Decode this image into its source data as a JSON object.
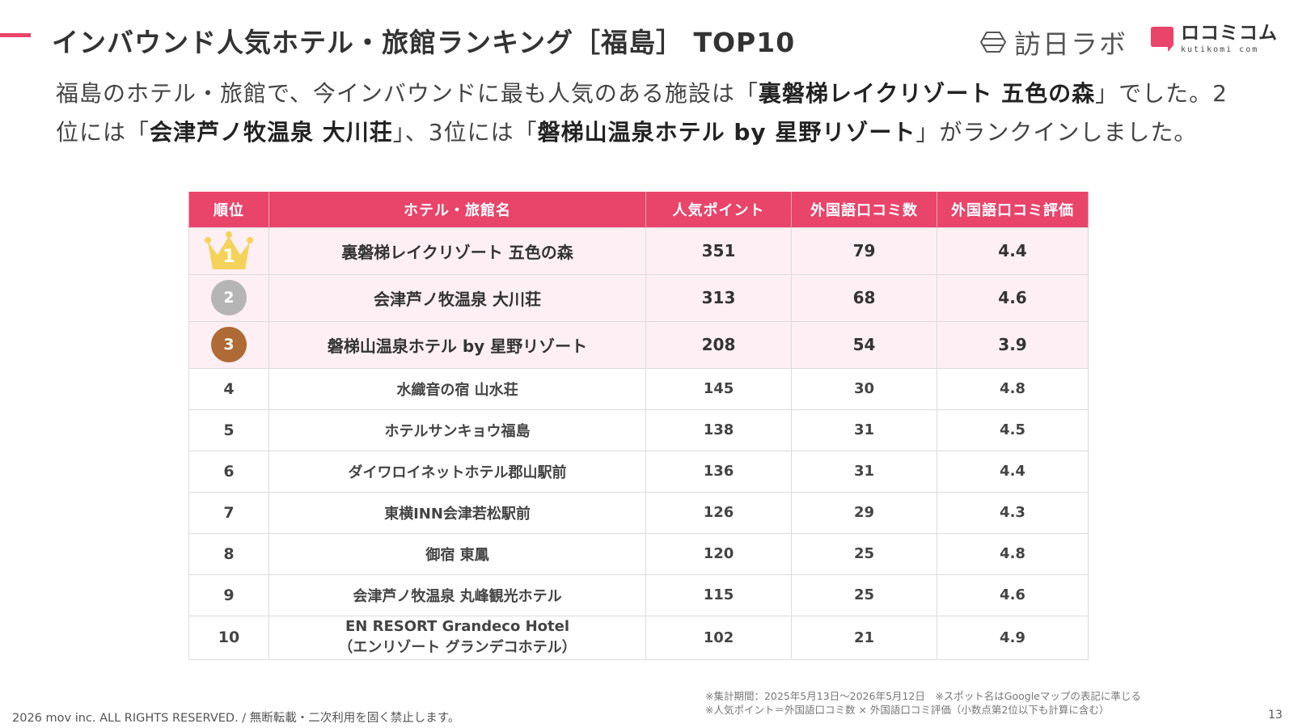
{
  "header": {
    "title": "インバウンド人気ホテル・旅館ランキング［福島］ TOP10",
    "logo_homon": "訪日ラボ",
    "logo_kuchikomi_main": "ロコミコム",
    "logo_kuchikomi_sub": "kutikomi com"
  },
  "intro": {
    "p1": "福島のホテル・旅館で、今インバウンドに最も人気のある施設は「",
    "b1": "裏磐梯レイクリゾート 五色の森",
    "p2": "」でした。2位には「",
    "b2": "会津芦ノ牧温泉 大川荘",
    "p3": "」、3位には「",
    "b3": "磐梯山温泉ホテル by 星野リゾート",
    "p4": "」がランクインしました。"
  },
  "table": {
    "headers": {
      "rank": "順位",
      "name": "ホテル・旅館名",
      "points": "人気ポイント",
      "reviews": "外国語口コミ数",
      "rating": "外国語口コミ評価"
    },
    "rows": [
      {
        "rank": "1",
        "name": "裏磐梯レイクリゾート 五色の森",
        "points": "351",
        "reviews": "79",
        "rating": "4.4"
      },
      {
        "rank": "2",
        "name": "会津芦ノ牧温泉 大川荘",
        "points": "313",
        "reviews": "68",
        "rating": "4.6"
      },
      {
        "rank": "3",
        "name": "磐梯山温泉ホテル by 星野リゾート",
        "points": "208",
        "reviews": "54",
        "rating": "3.9"
      },
      {
        "rank": "4",
        "name": "水織音の宿 山水荘",
        "points": "145",
        "reviews": "30",
        "rating": "4.8"
      },
      {
        "rank": "5",
        "name": "ホテルサンキョウ福島",
        "points": "138",
        "reviews": "31",
        "rating": "4.5"
      },
      {
        "rank": "6",
        "name": "ダイワロイネットホテル郡山駅前",
        "points": "136",
        "reviews": "31",
        "rating": "4.4"
      },
      {
        "rank": "7",
        "name": "東横INN会津若松駅前",
        "points": "126",
        "reviews": "29",
        "rating": "4.3"
      },
      {
        "rank": "8",
        "name": "御宿 東鳳",
        "points": "120",
        "reviews": "25",
        "rating": "4.8"
      },
      {
        "rank": "9",
        "name": "会津芦ノ牧温泉 丸峰観光ホテル",
        "points": "115",
        "reviews": "25",
        "rating": "4.6"
      },
      {
        "rank": "10",
        "name": "EN RESORT Grandeco Hotel",
        "name_line2": "（エンリゾート グランデコホテル）",
        "points": "102",
        "reviews": "21",
        "rating": "4.9"
      }
    ]
  },
  "notes": {
    "line1": "※集計期間：2025年5月13日〜2026年5月12日　※スポット名はGoogleマップの表記に準じる",
    "line2": "※人気ポイント＝外国語口コミ数 × 外国語口コミ評価（小数点第2位以下も計算に含む）"
  },
  "footer": {
    "copyright": "2026 mov inc. ALL RIGHTS RESERVED. / 無断転載・二次利用を固く禁止します。",
    "page_number": "13"
  },
  "colors": {
    "accent": "#e9446a",
    "top_row_bg": "#fdeff3",
    "gold": "#f5d35a",
    "silver": "#b5b5b5",
    "bronze": "#b06a35"
  },
  "icons": {
    "homon_logo": "hexagon-icon",
    "kuchikomi_logo": "speech-bubble-icon",
    "rank1": "crown-icon"
  }
}
